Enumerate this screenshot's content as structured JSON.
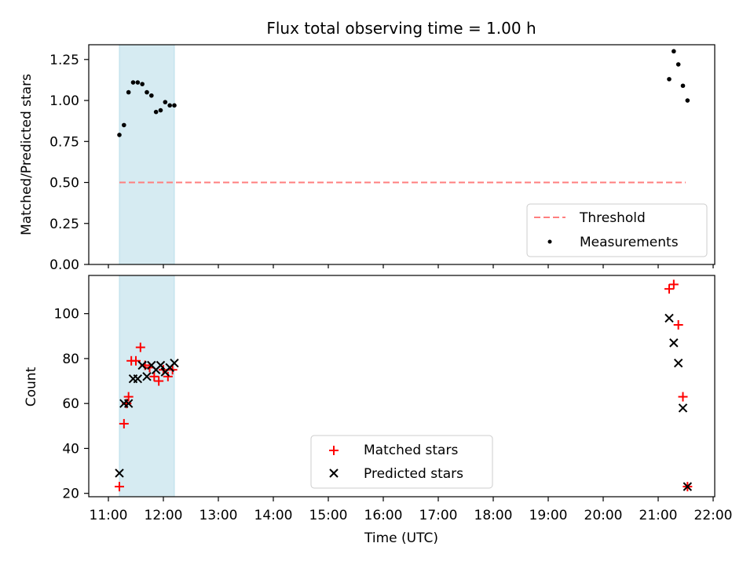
{
  "title": "Flux total observing time = 1.00 h",
  "chart_data": [
    {
      "type": "scatter",
      "ylabel": "Matched/Predicted stars",
      "ylim": [
        0,
        1.34
      ],
      "yticks": [
        0,
        0.25,
        0.5,
        0.75,
        1.0,
        1.25
      ],
      "ytick_labels": [
        "0.00",
        "0.25",
        "0.50",
        "0.75",
        "1.00",
        "1.25"
      ],
      "shaded_span": [
        "11:12",
        "12:12"
      ],
      "shade_color": "#add8e6",
      "threshold": {
        "name": "Threshold",
        "y": 0.5,
        "x_range": [
          "11:12",
          "21:30"
        ],
        "color": "#ff7f7f",
        "style": "dashed"
      },
      "series": [
        {
          "name": "Measurements",
          "marker": "dot",
          "color": "#000000",
          "points": [
            [
              "11:12",
              0.79
            ],
            [
              "11:17",
              0.85
            ],
            [
              "11:22",
              1.05
            ],
            [
              "11:27",
              1.11
            ],
            [
              "11:32",
              1.11
            ],
            [
              "11:37",
              1.1
            ],
            [
              "11:42",
              1.05
            ],
            [
              "11:47",
              1.03
            ],
            [
              "11:52",
              0.93
            ],
            [
              "11:57",
              0.94
            ],
            [
              "12:02",
              0.99
            ],
            [
              "12:07",
              0.97
            ],
            [
              "12:12",
              0.97
            ],
            [
              "21:12",
              1.13
            ],
            [
              "21:17",
              1.3
            ],
            [
              "21:22",
              1.22
            ],
            [
              "21:27",
              1.09
            ],
            [
              "21:32",
              1.0
            ]
          ]
        }
      ],
      "legend": {
        "placement": "lower right",
        "entries": [
          "Threshold",
          "Measurements"
        ]
      }
    },
    {
      "type": "scatter",
      "ylabel": "Count",
      "xlabel": "Time (UTC)",
      "ylim": [
        18.5,
        117
      ],
      "yticks": [
        20,
        40,
        60,
        80,
        100
      ],
      "ytick_labels": [
        "20",
        "40",
        "60",
        "80",
        "100"
      ],
      "xticks": [
        "11:00",
        "12:00",
        "13:00",
        "14:00",
        "15:00",
        "16:00",
        "17:00",
        "18:00",
        "19:00",
        "20:00",
        "21:00",
        "22:00"
      ],
      "shaded_span": [
        "11:12",
        "12:12"
      ],
      "shade_color": "#add8e6",
      "series": [
        {
          "name": "Matched stars",
          "marker": "plus",
          "color": "#ff0000",
          "points": [
            [
              "11:12",
              23
            ],
            [
              "11:17",
              51
            ],
            [
              "11:20",
              60
            ],
            [
              "11:22",
              63
            ],
            [
              "11:25",
              79
            ],
            [
              "11:30",
              79
            ],
            [
              "11:35",
              85
            ],
            [
              "11:40",
              77
            ],
            [
              "11:45",
              76
            ],
            [
              "11:50",
              72
            ],
            [
              "11:55",
              70
            ],
            [
              "12:00",
              75
            ],
            [
              "12:05",
              72
            ],
            [
              "12:10",
              75
            ],
            [
              "21:12",
              111
            ],
            [
              "21:17",
              113
            ],
            [
              "21:22",
              95
            ],
            [
              "21:27",
              63
            ],
            [
              "21:32",
              23
            ]
          ]
        },
        {
          "name": "Predicted stars",
          "marker": "x",
          "color": "#000000",
          "points": [
            [
              "11:12",
              29
            ],
            [
              "11:17",
              60
            ],
            [
              "11:22",
              60
            ],
            [
              "11:27",
              71
            ],
            [
              "11:32",
              71
            ],
            [
              "11:37",
              77
            ],
            [
              "11:42",
              72
            ],
            [
              "11:47",
              77
            ],
            [
              "11:52",
              75
            ],
            [
              "11:57",
              77
            ],
            [
              "12:02",
              74
            ],
            [
              "12:07",
              76
            ],
            [
              "12:12",
              78
            ],
            [
              "21:12",
              98
            ],
            [
              "21:17",
              87
            ],
            [
              "21:22",
              78
            ],
            [
              "21:27",
              58
            ],
            [
              "21:32",
              23
            ]
          ]
        }
      ],
      "legend": {
        "placement": "lower center",
        "entries": [
          "Matched stars",
          "Predicted stars"
        ]
      }
    }
  ]
}
